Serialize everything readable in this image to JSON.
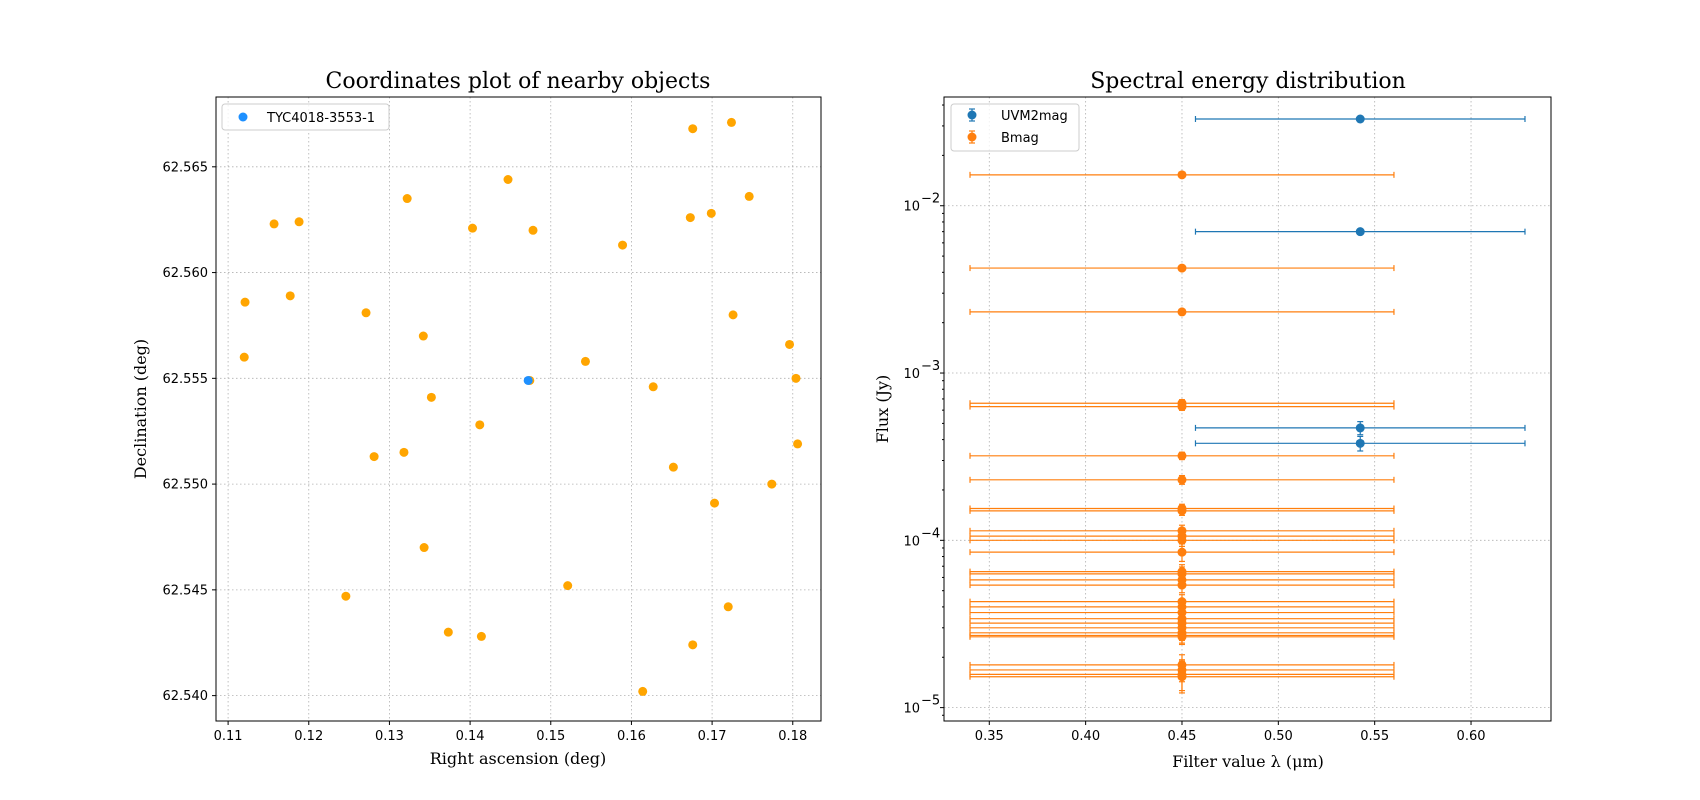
{
  "colors": {
    "target": "#1e90ff",
    "nearby": "#ffa500",
    "uvm2": "#1f77b4",
    "bmag": "#ff7f0e"
  },
  "chart_data": [
    {
      "type": "scatter",
      "title": "Coordinates plot of nearby objects",
      "xlabel": "Right ascension (deg)",
      "ylabel": "Declination (deg)",
      "xlim": [
        0.1085,
        0.1835
      ],
      "ylim": [
        62.5388,
        62.5683
      ],
      "xticks": [
        0.11,
        0.12,
        0.13,
        0.14,
        0.15,
        0.16,
        0.17,
        0.18
      ],
      "xtick_labels": [
        "0.11",
        "0.12",
        "0.13",
        "0.14",
        "0.15",
        "0.16",
        "0.17",
        "0.18"
      ],
      "yticks": [
        62.54,
        62.545,
        62.55,
        62.555,
        62.56,
        62.565
      ],
      "ytick_labels": [
        "62.540",
        "62.545",
        "62.550",
        "62.555",
        "62.560",
        "62.565"
      ],
      "grid": true,
      "legend": {
        "position": "top-left",
        "entries": [
          "TYC4018-3553-1"
        ]
      },
      "series": [
        {
          "name": "TYC4018-3553-1",
          "color": "#1e90ff",
          "points": [
            [
              0.1472,
              62.5549
            ]
          ]
        },
        {
          "color": "#ffa500",
          "points": [
            [
              0.1676,
              62.5668
            ],
            [
              0.1724,
              62.5671
            ],
            [
              0.1447,
              62.5644
            ],
            [
              0.1322,
              62.5635
            ],
            [
              0.1746,
              62.5636
            ],
            [
              0.1157,
              62.5623
            ],
            [
              0.1188,
              62.5624
            ],
            [
              0.1673,
              62.5626
            ],
            [
              0.1699,
              62.5628
            ],
            [
              0.1403,
              62.5621
            ],
            [
              0.1478,
              62.562
            ],
            [
              0.1589,
              62.5613
            ],
            [
              0.1121,
              62.5586
            ],
            [
              0.1177,
              62.5589
            ],
            [
              0.1271,
              62.5581
            ],
            [
              0.1726,
              62.558
            ],
            [
              0.1342,
              62.557
            ],
            [
              0.1796,
              62.5566
            ],
            [
              0.112,
              62.556
            ],
            [
              0.1543,
              62.5558
            ],
            [
              0.1804,
              62.555
            ],
            [
              0.1474,
              62.5549
            ],
            [
              0.1627,
              62.5546
            ],
            [
              0.1352,
              62.5541
            ],
            [
              0.1412,
              62.5528
            ],
            [
              0.1806,
              62.5519
            ],
            [
              0.1318,
              62.5515
            ],
            [
              0.1281,
              62.5513
            ],
            [
              0.1652,
              62.5508
            ],
            [
              0.1774,
              62.55
            ],
            [
              0.1703,
              62.5491
            ],
            [
              0.1343,
              62.547
            ],
            [
              0.1521,
              62.5452
            ],
            [
              0.1246,
              62.5447
            ],
            [
              0.172,
              62.5442
            ],
            [
              0.1373,
              62.543
            ],
            [
              0.1414,
              62.5428
            ],
            [
              0.1676,
              62.5424
            ],
            [
              0.1614,
              62.5402
            ]
          ]
        }
      ]
    },
    {
      "type": "scatter",
      "title": "Spectral energy distribution",
      "xlabel": "Filter value λ (μm)",
      "ylabel": "Flux (Jy)",
      "xlim": [
        0.3265,
        0.6415
      ],
      "ylim_log10": [
        -5.08,
        -1.35
      ],
      "yscale": "log",
      "xticks": [
        0.35,
        0.4,
        0.45,
        0.5,
        0.55,
        0.6
      ],
      "xtick_labels": [
        "0.35",
        "0.40",
        "0.45",
        "0.50",
        "0.55",
        "0.60"
      ],
      "yticks_log10": [
        -5,
        -4,
        -3,
        -2
      ],
      "ytick_labels": [
        "10",
        "10",
        "10",
        "10"
      ],
      "ytick_exponents": [
        "−5",
        "−4",
        "−3",
        "−2"
      ],
      "grid": true,
      "legend": {
        "position": "top-left",
        "entries": [
          "UVM2mag",
          "Bmag"
        ]
      },
      "series": [
        {
          "name": "UVM2mag",
          "color": "#1f77b4",
          "x": 0.5425,
          "xerr": 0.0855,
          "points": [
            {
              "y": 0.033,
              "yerr_rel": 0.03
            },
            {
              "y": 0.007,
              "yerr_rel": 0.03
            },
            {
              "y": 0.00047,
              "yerr_rel": 0.09
            },
            {
              "y": 0.00038,
              "yerr_rel": 0.1
            }
          ]
        },
        {
          "name": "Bmag",
          "color": "#ff7f0e",
          "x": 0.45,
          "xerr": 0.11,
          "points": [
            {
              "y": 0.0153,
              "yerr_rel": 0.03
            },
            {
              "y": 0.00424,
              "yerr_rel": 0.03
            },
            {
              "y": 0.00232,
              "yerr_rel": 0.03
            },
            {
              "y": 0.00066,
              "yerr_rel": 0.05
            },
            {
              "y": 0.00063,
              "yerr_rel": 0.05
            },
            {
              "y": 0.00032,
              "yerr_rel": 0.05
            },
            {
              "y": 0.00023,
              "yerr_rel": 0.06
            },
            {
              "y": 0.000155,
              "yerr_rel": 0.06
            },
            {
              "y": 0.00015,
              "yerr_rel": 0.06
            },
            {
              "y": 0.000114,
              "yerr_rel": 0.08
            },
            {
              "y": 0.000106,
              "yerr_rel": 0.08
            },
            {
              "y": 0.0001,
              "yerr_rel": 0.08
            },
            {
              "y": 8.5e-05,
              "yerr_rel": 0.12
            },
            {
              "y": 6.5e-05,
              "yerr_rel": 0.1
            },
            {
              "y": 6.3e-05,
              "yerr_rel": 0.1
            },
            {
              "y": 5.8e-05,
              "yerr_rel": 0.1
            },
            {
              "y": 5.4e-05,
              "yerr_rel": 0.1
            },
            {
              "y": 4.3e-05,
              "yerr_rel": 0.1
            },
            {
              "y": 4e-05,
              "yerr_rel": 0.1
            },
            {
              "y": 3.7e-05,
              "yerr_rel": 0.1
            },
            {
              "y": 3.4e-05,
              "yerr_rel": 0.1
            },
            {
              "y": 3.2e-05,
              "yerr_rel": 0.1
            },
            {
              "y": 3e-05,
              "yerr_rel": 0.1
            },
            {
              "y": 2.8e-05,
              "yerr_rel": 0.1
            },
            {
              "y": 2.7e-05,
              "yerr_rel": 0.1
            },
            {
              "y": 2.65e-05,
              "yerr_rel": 0.1
            },
            {
              "y": 1.8e-05,
              "yerr_rel": 0.15
            },
            {
              "y": 1.68e-05,
              "yerr_rel": 0.15
            },
            {
              "y": 1.58e-05,
              "yerr_rel": 0.2
            },
            {
              "y": 1.53e-05,
              "yerr_rel": 0.2
            }
          ]
        }
      ]
    }
  ]
}
